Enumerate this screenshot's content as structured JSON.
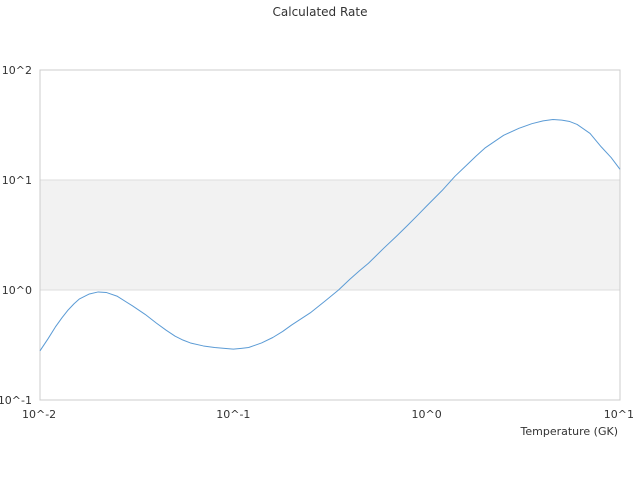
{
  "chart_data": {
    "type": "line",
    "title": "Calculated Rate",
    "xlabel": "Temperature (GK)",
    "ylabel": "",
    "x_scale": "log",
    "y_scale": "log",
    "xlim": [
      0.01,
      10
    ],
    "ylim": [
      0.1,
      100
    ],
    "x_ticks": [
      {
        "value": 0.01,
        "label": "10^-2"
      },
      {
        "value": 0.1,
        "label": "10^-1"
      },
      {
        "value": 1,
        "label": "10^0"
      },
      {
        "value": 10,
        "label": "10^1"
      }
    ],
    "y_ticks": [
      {
        "value": 0.1,
        "label": "10^-1"
      },
      {
        "value": 1,
        "label": "10^0"
      },
      {
        "value": 10,
        "label": "10^1"
      },
      {
        "value": 100,
        "label": "10^2"
      }
    ],
    "shaded_band": [
      1,
      10
    ],
    "grid": "horizontal",
    "colors": {
      "line": "#5b9bd5",
      "band": "#f2f2f2",
      "grid": "#dddddd",
      "axis": "#cccccc"
    },
    "series": [
      {
        "x": [
          0.01,
          0.011,
          0.012,
          0.013,
          0.014,
          0.015,
          0.016,
          0.018,
          0.02,
          0.022,
          0.025,
          0.03,
          0.035,
          0.04,
          0.045,
          0.05,
          0.055,
          0.06,
          0.07,
          0.08,
          0.09,
          0.1,
          0.11,
          0.12,
          0.14,
          0.16,
          0.18,
          0.2,
          0.25,
          0.3,
          0.35,
          0.4,
          0.45,
          0.5,
          0.6,
          0.7,
          0.8,
          0.9,
          1.0,
          1.2,
          1.4,
          1.6,
          1.8,
          2.0,
          2.5,
          3.0,
          3.5,
          4.0,
          4.5,
          5.0,
          5.5,
          6.0,
          7.0,
          8.0,
          9.0,
          10.0
        ],
        "y": [
          0.28,
          0.36,
          0.46,
          0.56,
          0.66,
          0.75,
          0.83,
          0.92,
          0.96,
          0.95,
          0.88,
          0.72,
          0.6,
          0.5,
          0.43,
          0.38,
          0.35,
          0.33,
          0.31,
          0.3,
          0.295,
          0.29,
          0.295,
          0.3,
          0.33,
          0.37,
          0.42,
          0.48,
          0.62,
          0.8,
          1.0,
          1.25,
          1.5,
          1.75,
          2.4,
          3.1,
          3.9,
          4.8,
          5.8,
          8.0,
          10.8,
          13.5,
          16.5,
          19.5,
          25.5,
          29.5,
          32.5,
          34.5,
          35.5,
          35.0,
          34.0,
          32.0,
          26.5,
          20.0,
          16.0,
          12.5
        ]
      }
    ]
  }
}
